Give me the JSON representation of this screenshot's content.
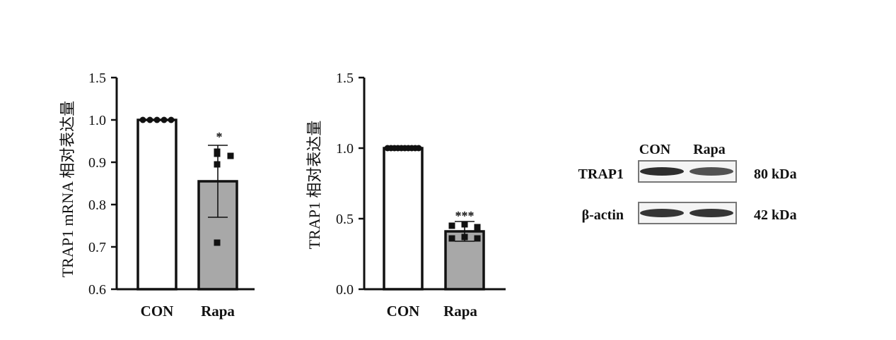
{
  "chart_data": [
    {
      "type": "bar",
      "categories": [
        "CON",
        "Rapa"
      ],
      "values": [
        1.0,
        0.855
      ],
      "error": [
        0,
        0.085
      ],
      "points": [
        [
          1.0,
          1.0,
          1.0,
          1.0,
          1.0
        ],
        [
          0.92,
          0.915,
          0.895,
          0.71,
          0.925
        ]
      ],
      "significance": [
        "",
        "*"
      ],
      "ylabel": "TRAP1 mRNA 相对表达量",
      "ylim": [
        0.6,
        1.5
      ],
      "yticks": [
        "0.6",
        "0.7",
        "0.8",
        "0.9",
        "1.0",
        "1.5"
      ],
      "yaxis_break": true,
      "bar_colors": [
        "#ffffff",
        "#a8a8a8"
      ]
    },
    {
      "type": "bar",
      "categories": [
        "CON",
        "Rapa"
      ],
      "values": [
        1.0,
        0.41
      ],
      "error": [
        0,
        0.07
      ],
      "points": [
        [
          1.0,
          1.0,
          1.0,
          1.0,
          1.0,
          1.0,
          1.0,
          1.0,
          1.0,
          1.0
        ],
        [
          0.45,
          0.46,
          0.36,
          0.37,
          0.44,
          0.36
        ]
      ],
      "significance": [
        "",
        "***"
      ],
      "ylabel": "TRAP1 相对表达量",
      "ylim": [
        0.0,
        1.5
      ],
      "yticks": [
        "0.0",
        "0.5",
        "1.0",
        "1.5"
      ],
      "bar_colors": [
        "#ffffff",
        "#a8a8a8"
      ]
    }
  ],
  "western_blot": {
    "lanes": [
      "CON",
      "Rapa"
    ],
    "rows": [
      {
        "label": "TRAP1",
        "mw": "80 kDa",
        "intensity": [
          0.95,
          0.7
        ]
      },
      {
        "label": "β-actin",
        "mw": "42 kDa",
        "intensity": [
          0.9,
          0.9
        ]
      }
    ]
  }
}
